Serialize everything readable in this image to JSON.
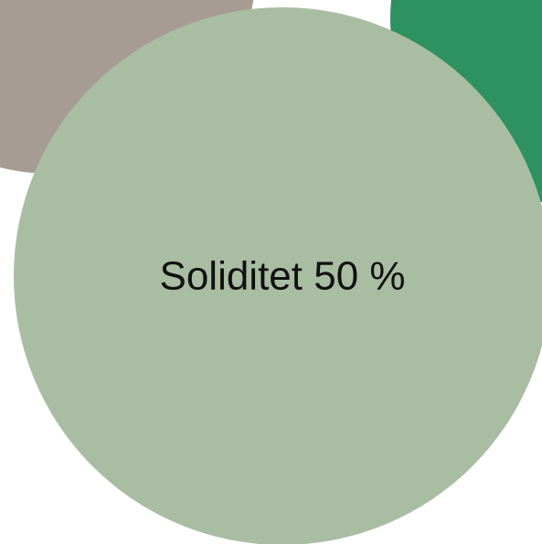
{
  "chart_data": {
    "type": "bubble",
    "bubbles": [
      {
        "label": "",
        "color": "#a69c94"
      },
      {
        "label": "",
        "color": "#2e9160"
      },
      {
        "label": "Soliditet 50 %",
        "color": "#a9bda3"
      }
    ]
  }
}
